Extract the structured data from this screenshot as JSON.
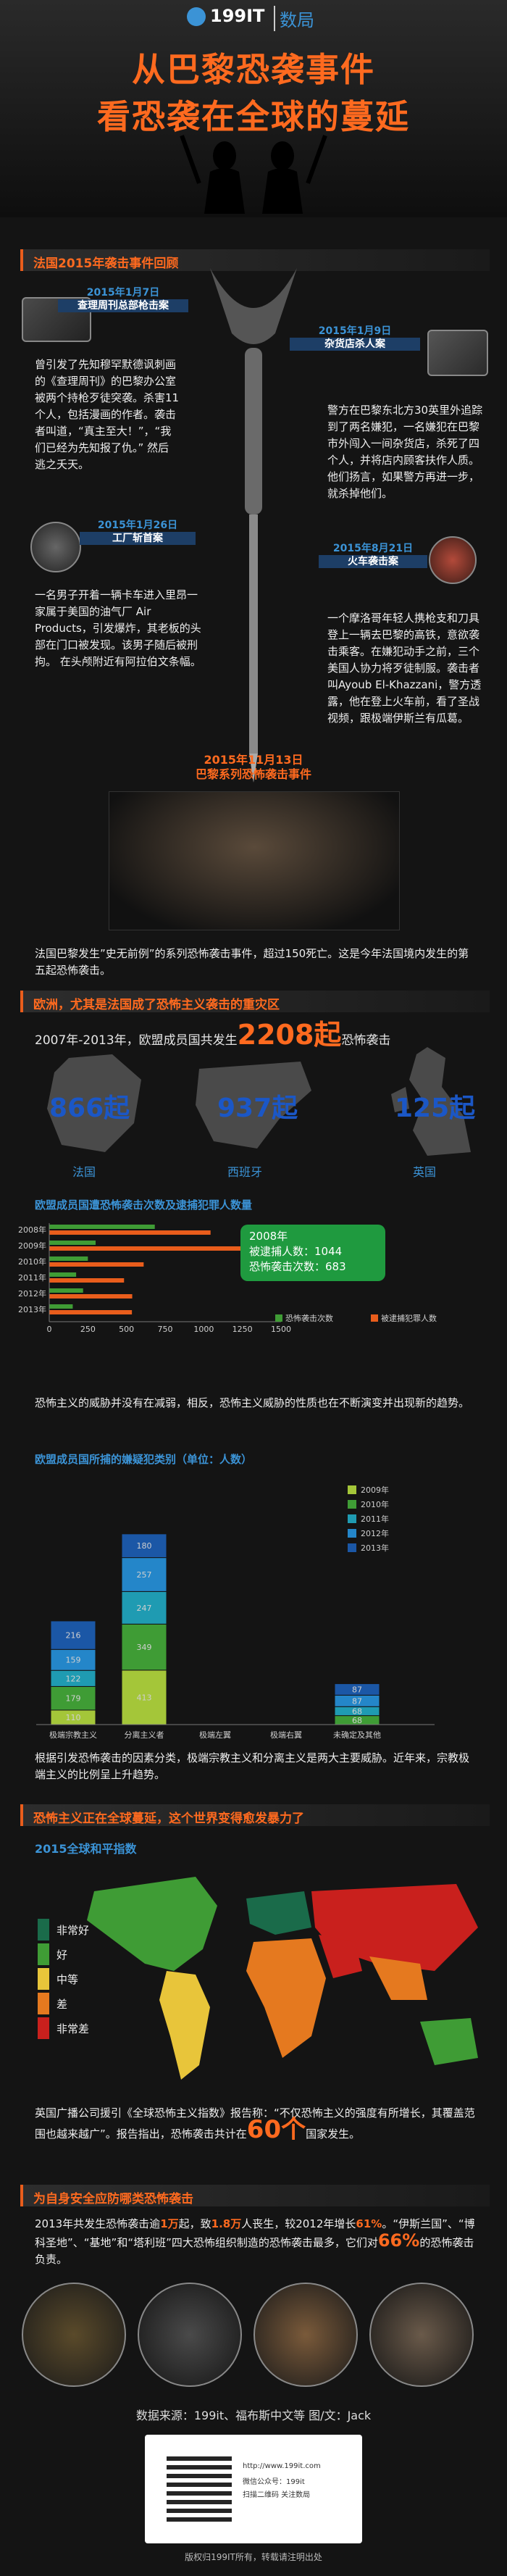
{
  "header": {
    "logo": "199IT",
    "logo_sub": "数局",
    "title_line1": "从巴黎恐袭事件",
    "title_line2": "看恐袭在全球的蔓延"
  },
  "section1": {
    "title": "法国2015年袭击事件回顾",
    "events": [
      {
        "date": "2015年1月7日",
        "name": "查理周刊总部枪击案",
        "text": "曾引发了先知穆罕默德讽刺画的《查理周刊》的巴黎办公室被两个持枪歹徒突袭。杀害11个人，包括漫画的作者。袭击者叫道，“真主至大！”，“我们已经为先知报了仇。” 然后逃之夭天。"
      },
      {
        "date": "2015年1月9日",
        "name": "杂货店杀人案",
        "text": "警方在巴黎东北方30英里外追踪到了两名嫌犯，一名嫌犯在巴黎市外闯入一间杂货店，杀死了四个人，并将店内顾客扶作人质。他们扬言，如果警方再进一步，就杀掉他们。"
      },
      {
        "date": "2015年1月26日",
        "name": "工厂斩首案",
        "text": "一名男子开着一辆卡车进入里昂一家属于美国的油气厂 Air Products，引发爆炸，其老板的头部在门口被发现。该男子随后被刑拘。 在头颅附近有阿拉伯文条幅。"
      },
      {
        "date": "2015年8月21日",
        "name": "火车袭击案",
        "text": "一个摩洛哥年轻人携枪支和刀具登上一辆去巴黎的高铁，意欲袭击乘客。在嫌犯动手之前，三个美国人协力将歹徒制服。袭击者叫Ayoub El-Khazzani，警方透露，他在登上火车前，看了圣战视频，跟极端伊斯兰有瓜葛。"
      },
      {
        "date": "2015年11月13日",
        "name": "巴黎系列恐怖袭击事件",
        "text": "法国巴黎发生”史无前例”的系列恐怖袭击事件，超过150死亡。这是今年法国境内发生的第五起恐怖袭击。"
      }
    ]
  },
  "section2": {
    "title": "欧洲，尤其是法国成了恐怖主义袭击的重灾区",
    "intro_prefix": "2007年-2013年，欧盟成员国共发生",
    "intro_number": "2208起",
    "intro_suffix": "恐怖袭击",
    "countries": [
      {
        "name": "法国",
        "value": "866起"
      },
      {
        "name": "西班牙",
        "value": "937起"
      },
      {
        "name": "英国",
        "value": "125起"
      }
    ]
  },
  "chart_data": [
    {
      "type": "bar",
      "title": "欧盟成员国遭恐怖袭击次数及逮捕犯罪人数量",
      "categories": [
        "2008年",
        "2009年",
        "2010年",
        "2011年",
        "2012年",
        "2013年"
      ],
      "xlim": [
        0,
        1500
      ],
      "xticks": [
        "0",
        "250",
        "500",
        "750",
        "1000",
        "1250",
        "1500"
      ],
      "series": [
        {
          "name": "恐怖袭击次数",
          "color": "#3f9c35",
          "values": [
            683,
            300,
            250,
            174,
            219,
            152
          ]
        },
        {
          "name": "被逮捕犯罪人数",
          "color": "#e95d1c",
          "values": [
            1044,
            1400,
            611,
            484,
            537,
            535
          ]
        }
      ],
      "annotation": {
        "year": "2008年",
        "line1": "被逮捕人数：1044",
        "line2": "恐怖袭击次数：683"
      },
      "note": "恐怖主义的威胁并没有在减弱，相反，恐怖主义威胁的性质也在不断演变并出现新的趋势。"
    },
    {
      "type": "bar",
      "stacked": true,
      "title": "欧盟成员国所捕的嫌疑犯类别（单位：人数）",
      "categories": [
        "极端宗教主义",
        "分离主义者",
        "极端左翼",
        "极端右翼",
        "未确定及其他"
      ],
      "series": [
        {
          "name": "2009年",
          "color": "#a4c639",
          "values": [
            110,
            413,
            0,
            0,
            0
          ]
        },
        {
          "name": "2010年",
          "color": "#3f9c35",
          "values": [
            179,
            349,
            0,
            0,
            68
          ]
        },
        {
          "name": "2011年",
          "color": "#1f9bb2",
          "values": [
            122,
            247,
            0,
            0,
            68
          ]
        },
        {
          "name": "2012年",
          "color": "#2486c9",
          "values": [
            159,
            257,
            0,
            0,
            87
          ]
        },
        {
          "name": "2013年",
          "color": "#1b57a6",
          "values": [
            216,
            180,
            0,
            0,
            87
          ]
        }
      ],
      "note": "根据引发恐怖袭击的因素分类，极端宗教主义和分离主义是两大主要威胁。近年来，宗教极端主义的比例呈上升趋势。"
    }
  ],
  "section3": {
    "title": "恐怖主义正在全球蔓延，这个世界变得愈发暴力了",
    "map_title": "2015全球和平指数",
    "legend": [
      {
        "label": "非常好",
        "color": "#1a6b4a"
      },
      {
        "label": "好",
        "color": "#3f9c35"
      },
      {
        "label": "中等",
        "color": "#e8c53a"
      },
      {
        "label": "差",
        "color": "#e5791f"
      },
      {
        "label": "非常差",
        "color": "#c9201d"
      }
    ],
    "text_prefix": "英国广播公司援引《全球恐怖主义指数》报告称：“不仅恐怖主义的强度有所增长，其覆盖范围也越来越广”。报告指出，恐怖袭击共计在",
    "text_number": "60个",
    "text_suffix": "国家发生。"
  },
  "section4": {
    "title": "为自身安全应防哪类恐怖袭击",
    "text_1": "2013年共发生恐怖袭击逾",
    "num_1": "1万",
    "text_2": "起，致",
    "num_2": "1.8万",
    "text_3": "人丧生，较2012年增长",
    "num_3": "61%",
    "text_4": "。“伊斯兰国”、“博科圣地”、“基地”和“塔利班”四大恐怖组织制造的恐怖袭击最多，它们对",
    "num_4": "66%",
    "text_5": "的恐怖袭击负责。"
  },
  "footer": {
    "source": "数据来源：199it、福布斯中文等  图/文：Jack",
    "site": "http://www.199it.com",
    "wechat": "微信公众号：199it",
    "scan": "扫描二维码 关注数局",
    "copyright": "版权归199IT所有，转载请注明出处"
  }
}
